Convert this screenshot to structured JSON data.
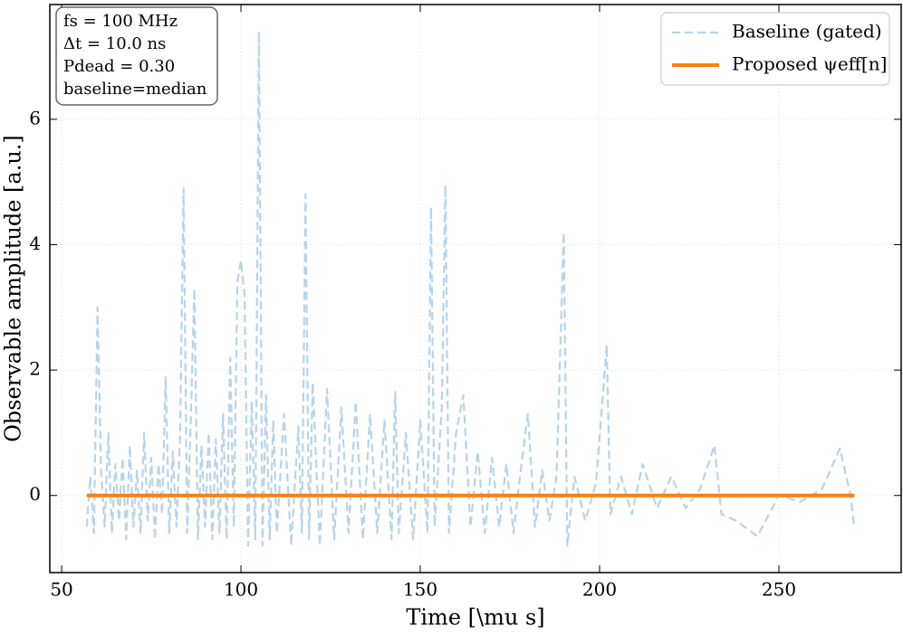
{
  "chart_data": {
    "type": "line",
    "xlabel": "Time [\\mu s]",
    "ylabel": "Observable amplitude [a.u.]",
    "annotations": [
      "fs = 100 MHz",
      "Δt = 10.0 ns",
      "Pdead = 0.30",
      "baseline=median"
    ],
    "xlim": [
      46.7,
      284.1
    ],
    "ylim": [
      -1.23,
      7.83
    ],
    "xticks": [
      50,
      100,
      150,
      200,
      250
    ],
    "yticks": [
      0,
      2,
      4,
      6
    ],
    "grid": true,
    "legend": "upper right",
    "series": [
      {
        "name": "Baseline (gated)",
        "color": "#b7d4ea",
        "dashed": true,
        "x": [
          57,
          58,
          59,
          60,
          61,
          62,
          63,
          64,
          65,
          66,
          67,
          68,
          69,
          70,
          71,
          72,
          73,
          74,
          75,
          76,
          77,
          78,
          79,
          80,
          81,
          82,
          83,
          84,
          85,
          86,
          87,
          88,
          89,
          90,
          91,
          92,
          93,
          94,
          95,
          96,
          97,
          98,
          99,
          100,
          101,
          102,
          103,
          104,
          105,
          106,
          107,
          108,
          109,
          110,
          112,
          114,
          116,
          117,
          118,
          119,
          120,
          122,
          124,
          126,
          128,
          130,
          132,
          134,
          136,
          138,
          140,
          142,
          143,
          144,
          146,
          148,
          150,
          152,
          153,
          154,
          156,
          157,
          158,
          160,
          162,
          164,
          166,
          168,
          170,
          172,
          174,
          176,
          178,
          180,
          182,
          184,
          186,
          188,
          190,
          191,
          193,
          196,
          199,
          202,
          203,
          206,
          209,
          212,
          216,
          220,
          224,
          228,
          232,
          234,
          238,
          244,
          250,
          256,
          262,
          267,
          270,
          271
        ],
        "values": [
          -0.5,
          0.3,
          -0.6,
          3.0,
          0.4,
          -0.5,
          1.0,
          -0.6,
          0.5,
          -0.4,
          0.6,
          -0.7,
          0.8,
          -0.5,
          0.4,
          -0.6,
          1.0,
          -0.4,
          0.6,
          -0.7,
          0.5,
          -0.3,
          1.9,
          -0.6,
          0.7,
          -0.5,
          0.9,
          4.9,
          -0.6,
          1.2,
          3.3,
          -0.7,
          0.8,
          -0.5,
          1.0,
          -0.7,
          0.9,
          -0.6,
          1.3,
          -0.7,
          2.2,
          -0.5,
          3.4,
          3.75,
          3.2,
          -0.8,
          1.5,
          -0.7,
          7.4,
          -0.8,
          1.6,
          -0.7,
          1.2,
          -0.6,
          1.3,
          -0.8,
          1.1,
          -0.6,
          4.8,
          -0.7,
          1.8,
          -0.8,
          1.7,
          -0.7,
          1.4,
          -0.6,
          1.5,
          -0.7,
          1.3,
          -0.6,
          1.2,
          -0.7,
          1.65,
          -0.6,
          1.0,
          -0.7,
          1.2,
          -0.6,
          4.6,
          -0.5,
          1.4,
          4.95,
          -0.6,
          1.0,
          1.6,
          -0.5,
          0.7,
          -0.6,
          0.6,
          -0.5,
          0.5,
          -0.6,
          0.4,
          1.3,
          -0.5,
          0.4,
          -0.4,
          0.3,
          4.2,
          -0.8,
          0.3,
          -0.4,
          0.2,
          2.4,
          -0.3,
          0.3,
          -0.3,
          0.5,
          -0.2,
          0.3,
          -0.2,
          0.1,
          0.8,
          -0.3,
          -0.4,
          -0.65,
          0.0,
          -0.1,
          0.1,
          0.75,
          0.0,
          -0.5
        ]
      },
      {
        "name": "Proposed ψeff[n]",
        "color": "#ff7f0e",
        "dashed": false,
        "x": [
          57,
          271
        ],
        "values": [
          0,
          0
        ]
      }
    ]
  }
}
